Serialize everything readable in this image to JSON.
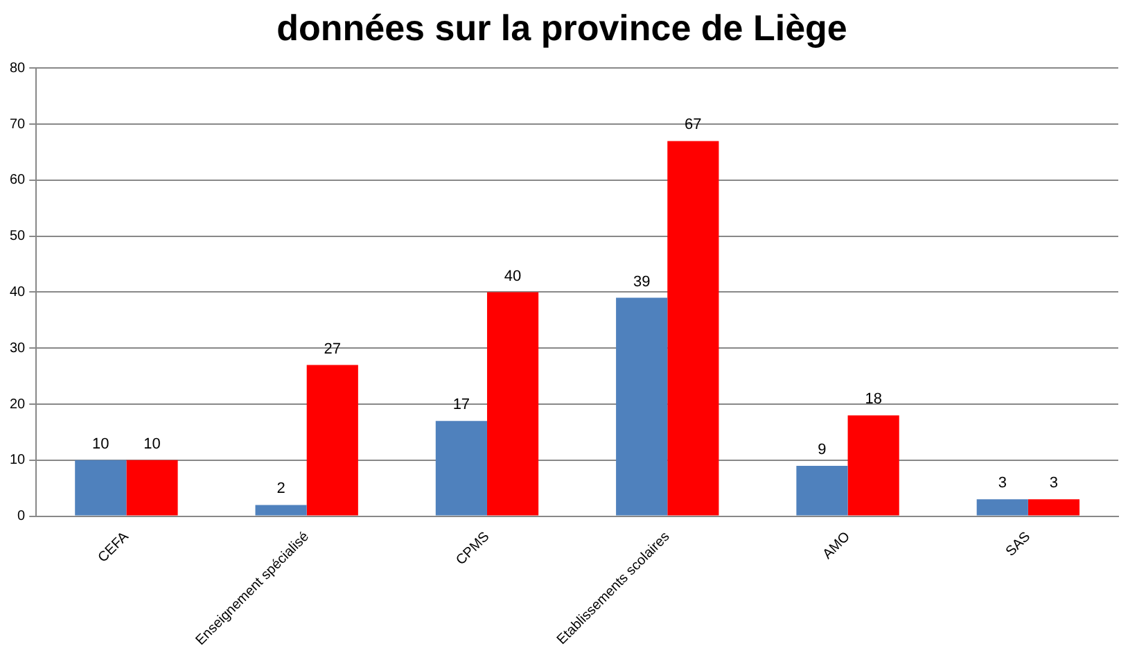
{
  "chart_data": {
    "type": "bar",
    "title": "données sur la province de Liège",
    "categories": [
      "CEFA",
      "Enseignement spécialisé",
      "CPMS",
      "Etablissements scolaires",
      "AMO",
      "SAS"
    ],
    "series": [
      {
        "color": "#4f81bd",
        "values": [
          10,
          2,
          17,
          39,
          9,
          3
        ]
      },
      {
        "color": "#ff0000",
        "values": [
          10,
          27,
          40,
          67,
          18,
          3
        ]
      }
    ],
    "ylim": [
      0,
      80
    ],
    "yticks": [
      0,
      10,
      20,
      30,
      40,
      50,
      60,
      70,
      80
    ],
    "grid": "y",
    "legend": false,
    "data_labels": true
  }
}
